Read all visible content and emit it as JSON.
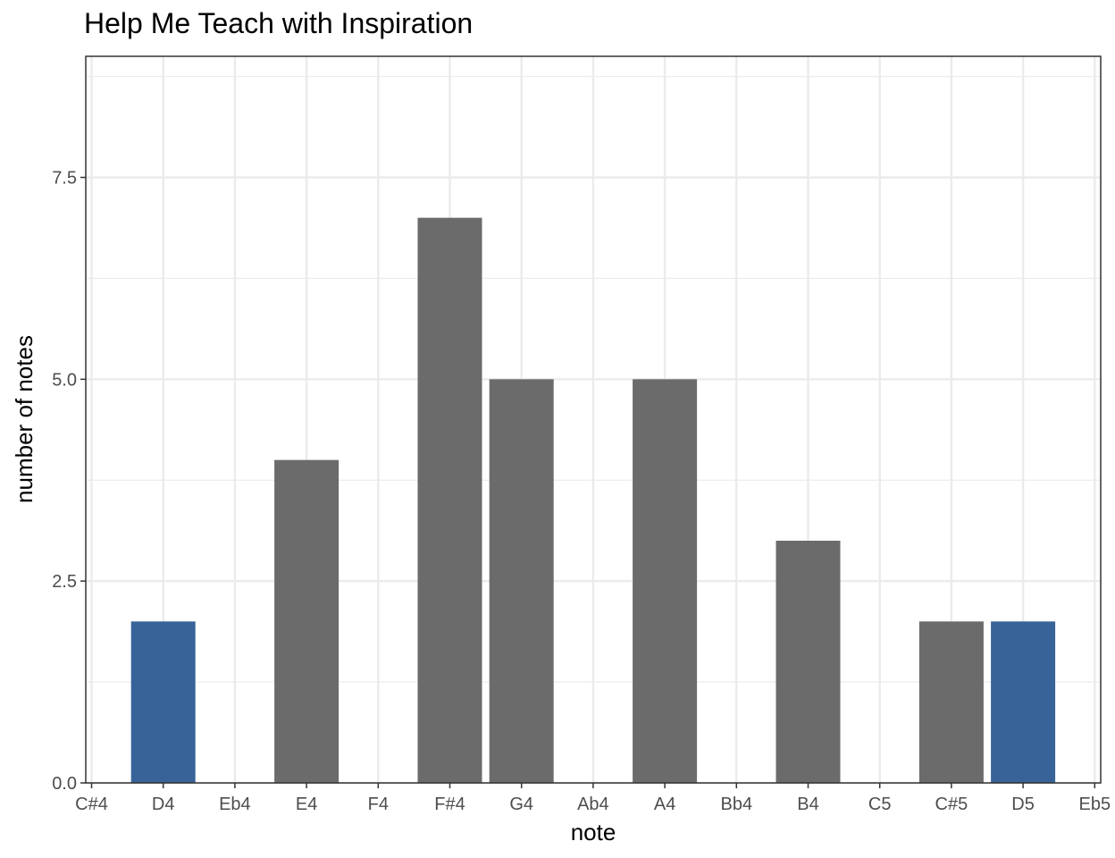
{
  "chart_data": {
    "type": "bar",
    "title": "Help Me Teach with Inspiration",
    "xlabel": "note",
    "ylabel": "number of notes",
    "categories": [
      "C#4",
      "D4",
      "Eb4",
      "E4",
      "F4",
      "F#4",
      "G4",
      "Ab4",
      "A4",
      "Bb4",
      "B4",
      "C5",
      "C#5",
      "D5",
      "Eb5"
    ],
    "values": [
      0,
      2,
      0,
      4,
      0,
      7,
      5,
      0,
      5,
      0,
      3,
      0,
      2,
      2,
      0
    ],
    "highlight": [
      false,
      true,
      false,
      false,
      false,
      false,
      false,
      false,
      false,
      false,
      false,
      false,
      false,
      true,
      false
    ],
    "colors": {
      "default": "#6b6b6b",
      "highlight": "#386399"
    },
    "yticks": [
      0,
      2.5,
      5,
      7.5
    ],
    "ytick_labels": [
      "0.0",
      "2.5",
      "5.0",
      "7.5"
    ],
    "ylim": [
      0,
      9
    ],
    "grid": true,
    "legend": "none"
  }
}
